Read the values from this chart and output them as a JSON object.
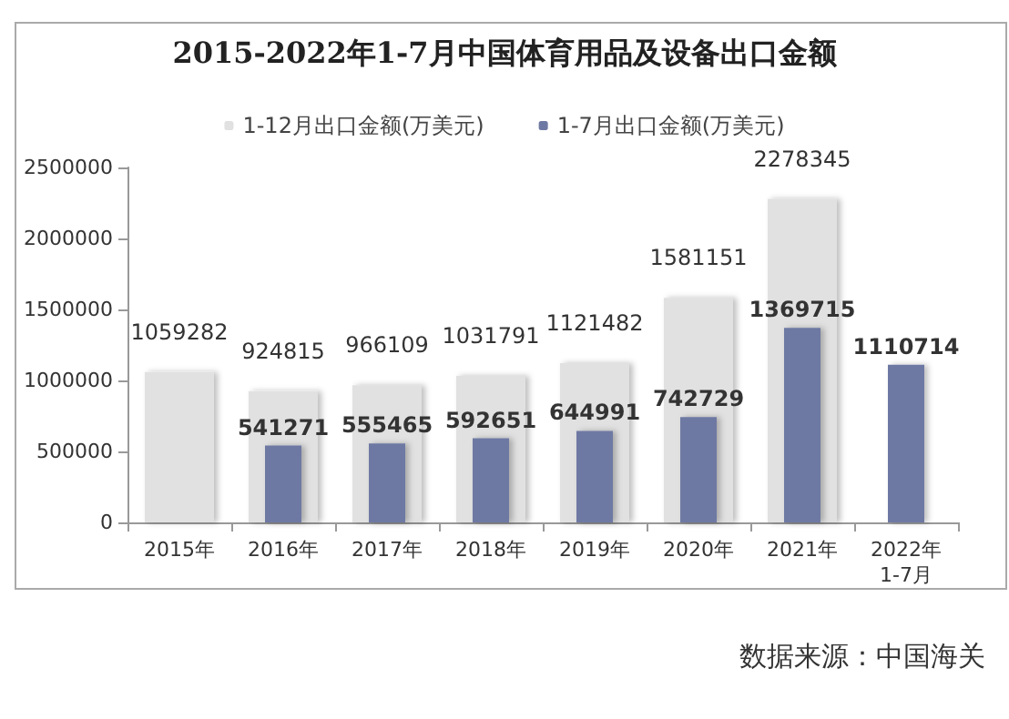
{
  "chart_data": {
    "type": "bar",
    "title": "2015-2022年1-7月中国体育用品及设备出口金额",
    "categories": [
      "2015年",
      "2016年",
      "2017年",
      "2018年",
      "2019年",
      "2020年",
      "2021年",
      "2022年\n1-7月"
    ],
    "series": [
      {
        "name": "1-12月出口金额(万美元)",
        "color": "#e0e1e0",
        "values": [
          1059282,
          924815,
          966109,
          1031791,
          1121482,
          1581151,
          2278345,
          null
        ]
      },
      {
        "name": "1-7月出口金额(万美元)",
        "color": "#6e79a3",
        "values": [
          null,
          541271,
          555465,
          592651,
          644991,
          742729,
          1369715,
          1110714
        ]
      }
    ],
    "ylim": [
      0,
      2500000
    ],
    "yticks": [
      0,
      500000,
      1000000,
      1500000,
      2000000,
      2500000
    ],
    "grid": false,
    "legend": "top",
    "data_labels": true,
    "annotations": [
      "数据来源：中国海关"
    ]
  }
}
